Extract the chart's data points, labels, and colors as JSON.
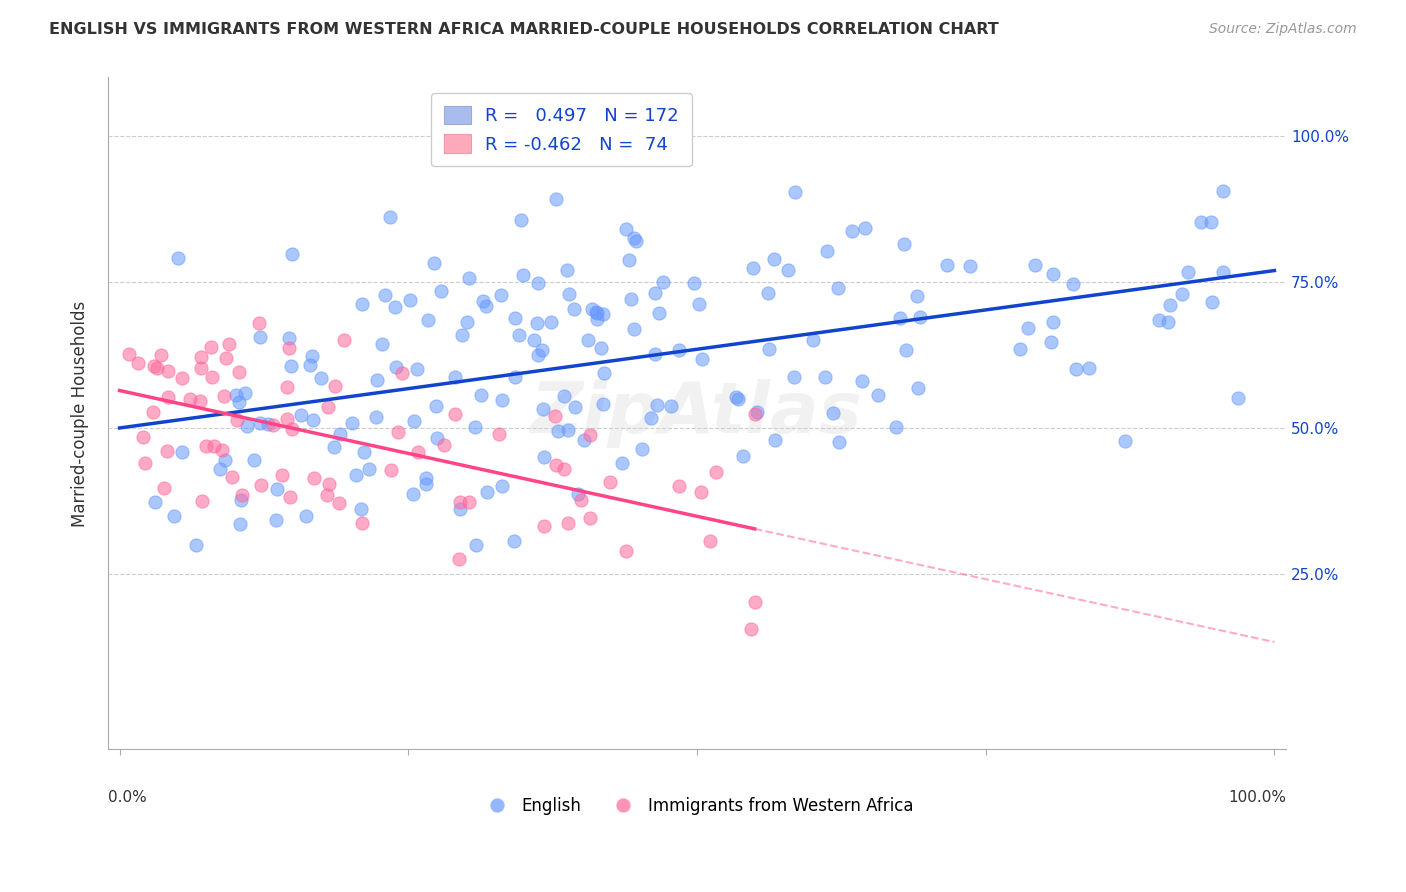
{
  "title": "ENGLISH VS IMMIGRANTS FROM WESTERN AFRICA MARRIED-COUPLE HOUSEHOLDS CORRELATION CHART",
  "source": "Source: ZipAtlas.com",
  "ylabel": "Married-couple Households",
  "blue_R": 0.497,
  "blue_N": 172,
  "pink_R": -0.462,
  "pink_N": 74,
  "blue_color": "#6699ff",
  "pink_color": "#ff6699",
  "blue_line_color": "#1144cc",
  "pink_line_color": "#ff4488",
  "watermark": "ZipAtlas",
  "yticks": [
    "25.0%",
    "50.0%",
    "75.0%",
    "100.0%"
  ],
  "ytick_vals": [
    0.25,
    0.5,
    0.75,
    1.0
  ],
  "background_color": "#ffffff",
  "seed_blue": 42,
  "seed_pink": 99
}
